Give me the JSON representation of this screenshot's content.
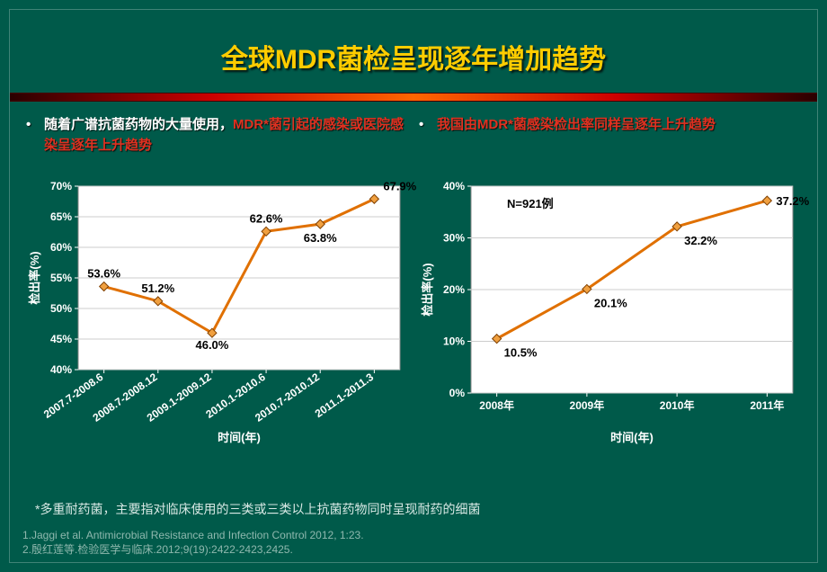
{
  "title": "全球MDR菌检呈现逐年增加趋势",
  "left_bullet": {
    "pre": "随着广谱抗菌药物的大量使用，",
    "hl": "MDR*菌引起的感染或医院感染呈逐年上升趋势"
  },
  "right_bullet": {
    "pre": "",
    "hl": "我国由MDR*菌感染检出率同样呈逐年上升趋势"
  },
  "chart_left": {
    "type": "line",
    "title": null,
    "categories": [
      "2007.7-2008.6",
      "2008.7-2008.12",
      "2009.1-2009.12",
      "2010.1-2010.6",
      "2010.7-2010.12",
      "2011.1-2011.3"
    ],
    "values": [
      53.6,
      51.2,
      46.0,
      62.6,
      63.8,
      67.9
    ],
    "value_labels": [
      "53.6%",
      "51.2%",
      "46.0%",
      "62.6%",
      "63.8%",
      "67.9%"
    ],
    "ylim": [
      40,
      70
    ],
    "ytick_step": 5,
    "ytick_labels": [
      "40%",
      "45%",
      "50%",
      "55%",
      "60%",
      "65%",
      "70%"
    ],
    "xlabel": "时间(年)",
    "ylabel": "检出率(%)",
    "line_color": "#e07000",
    "marker_fill": "#f0a040",
    "marker_stroke": "#804000",
    "plot_bg": "#ffffff",
    "grid_color": "#cccccc",
    "border_color": "#888888",
    "line_width": 3,
    "marker_size": 5,
    "axis_fontsize": 12,
    "label_fontsize": 13,
    "x_rotate": -35
  },
  "chart_right": {
    "type": "line",
    "note": "N=921例",
    "categories": [
      "2008年",
      "2009年",
      "2010年",
      "2011年"
    ],
    "values": [
      10.5,
      20.1,
      32.2,
      37.2
    ],
    "value_labels": [
      "10.5%",
      "20.1%",
      "32.2%",
      "37.2%"
    ],
    "ylim": [
      0,
      40
    ],
    "ytick_step": 10,
    "ytick_labels": [
      "0%",
      "10%",
      "20%",
      "30%",
      "40%"
    ],
    "xlabel": "时间(年)",
    "ylabel": "检出率(%)",
    "line_color": "#e07000",
    "marker_fill": "#f0a040",
    "marker_stroke": "#804000",
    "plot_bg": "#ffffff",
    "grid_color": "#cccccc",
    "border_color": "#888888",
    "line_width": 3,
    "marker_size": 5,
    "axis_fontsize": 12,
    "label_fontsize": 13,
    "x_rotate": 0
  },
  "footnote": "*多重耐药菌，主要指对临床使用的三类或三类以上抗菌药物同时呈现耐药的细菌",
  "refs": [
    "1.Jaggi et al. Antimicrobial Resistance and Infection Control 2012, 1:23.",
    "2.殷红莲等.检验医学与临床.2012;9(19):2422-2423,2425."
  ]
}
